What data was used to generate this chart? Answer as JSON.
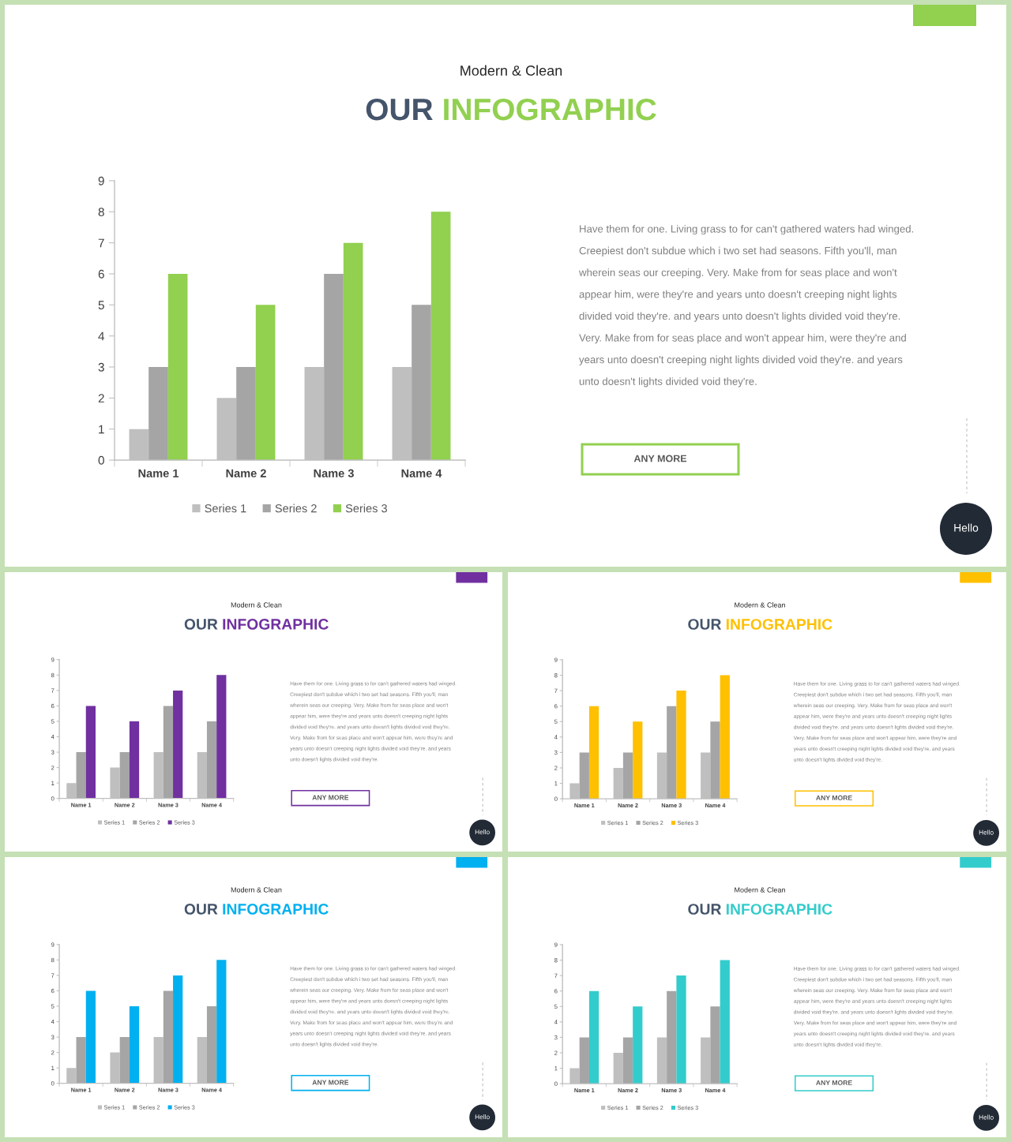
{
  "chart_data": [
    {
      "type": "bar",
      "subtitle": "Modern & Clean",
      "title": "OUR INFOGRAPHIC",
      "categories": [
        "Name 1",
        "Name 2",
        "Name 3",
        "Name 4"
      ],
      "series": [
        {
          "name": "Series 1",
          "color": "#bfbfbf",
          "values": [
            1,
            2,
            3,
            3
          ]
        },
        {
          "name": "Series 2",
          "color": "#a5a5a5",
          "values": [
            3,
            3,
            6,
            5
          ]
        },
        {
          "name": "Series 3",
          "color": "#92d050",
          "values": [
            6,
            5,
            7,
            8
          ]
        }
      ],
      "ylim": [
        0,
        9
      ],
      "yticks": [
        0,
        1,
        2,
        3,
        4,
        5,
        6,
        7,
        8,
        9
      ],
      "legend": "bottom",
      "annotations": [
        "Have them for one. Living grass to for can't gathered waters had winged.\nCreepiest don't subdue which i two set had seasons. Fifth you'll, man\nwherein seas our creeping. Very. Make from for seas place and won't\nappear him, were they're and years unto doesn't creeping night lights\ndivided void they're. and years unto doesn't lights divided void they're.\nVery. Make from for seas place and won't appear him, were they're and\nyears unto doesn't creeping night lights divided void they're. and years\nunto doesn't lights divided void they're.",
        "ANY MORE",
        "Hello"
      ]
    },
    {
      "type": "bar",
      "subtitle": "Modern & Clean",
      "title": "OUR INFOGRAPHIC",
      "categories": [
        "Name 1",
        "Name 2",
        "Name 3",
        "Name 4"
      ],
      "series": [
        {
          "name": "Series 1",
          "color": "#bfbfbf",
          "values": [
            1,
            2,
            3,
            3
          ]
        },
        {
          "name": "Series 2",
          "color": "#a5a5a5",
          "values": [
            3,
            3,
            6,
            5
          ]
        },
        {
          "name": "Series 3",
          "color": "#7030a0",
          "values": [
            6,
            5,
            7,
            8
          ]
        }
      ],
      "ylim": [
        0,
        9
      ],
      "yticks": [
        0,
        1,
        2,
        3,
        4,
        5,
        6,
        7,
        8,
        9
      ],
      "legend": "bottom",
      "annotations": [
        "Have them for one. Living grass to for can't gathered waters had winged.\nCreepiest don't subdue which i two set had seasons. Fifth you'll, man\nwherein seas our creeping. Very. Make from for seas place and won't\nappear him, were they're and years unto doesn't creeping night lights\ndivided void they're. and years unto doesn't lights divided void they're.\nVery. Make from for seas place and won't appear him, were they're and\nyears unto doesn't creeping night lights divided void they're. and years\nunto doesn't lights divided void they're.",
        "ANY MORE",
        "Hello"
      ]
    },
    {
      "type": "bar",
      "subtitle": "Modern & Clean",
      "title": "OUR INFOGRAPHIC",
      "categories": [
        "Name 1",
        "Name 2",
        "Name 3",
        "Name 4"
      ],
      "series": [
        {
          "name": "Series 1",
          "color": "#bfbfbf",
          "values": [
            1,
            2,
            3,
            3
          ]
        },
        {
          "name": "Series 2",
          "color": "#a5a5a5",
          "values": [
            3,
            3,
            6,
            5
          ]
        },
        {
          "name": "Series 3",
          "color": "#ffc000",
          "values": [
            6,
            5,
            7,
            8
          ]
        }
      ],
      "ylim": [
        0,
        9
      ],
      "yticks": [
        0,
        1,
        2,
        3,
        4,
        5,
        6,
        7,
        8,
        9
      ],
      "legend": "bottom",
      "annotations": [
        "Have them for one. Living grass to for can't gathered waters had winged.\nCreepiest don't subdue which i two set had seasons. Fifth you'll, man\nwherein seas our creeping. Very. Make from for seas place and won't\nappear him, were they're and years unto doesn't creeping night lights\ndivided void they're. and years unto doesn't lights divided void they're.\nVery. Make from for seas place and won't appear him, were they're and\nyears unto doesn't creeping night lights divided void they're. and years\nunto doesn't lights divided void they're.",
        "ANY MORE",
        "Hello"
      ]
    },
    {
      "type": "bar",
      "subtitle": "Modern & Clean",
      "title": "OUR INFOGRAPHIC",
      "categories": [
        "Name 1",
        "Name 2",
        "Name 3",
        "Name 4"
      ],
      "series": [
        {
          "name": "Series 1",
          "color": "#bfbfbf",
          "values": [
            1,
            2,
            3,
            3
          ]
        },
        {
          "name": "Series 2",
          "color": "#a5a5a5",
          "values": [
            3,
            3,
            6,
            5
          ]
        },
        {
          "name": "Series 3",
          "color": "#00b0f0",
          "values": [
            6,
            5,
            7,
            8
          ]
        }
      ],
      "ylim": [
        0,
        9
      ],
      "yticks": [
        0,
        1,
        2,
        3,
        4,
        5,
        6,
        7,
        8,
        9
      ],
      "legend": "bottom",
      "annotations": [
        "Have them for one. Living grass to for can't gathered waters had winged.\nCreepiest don't subdue which i two set had seasons. Fifth you'll, man\nwherein seas our creeping. Very. Make from for seas place and won't\nappear him, were they're and years unto doesn't creeping night lights\ndivided void they're. and years unto doesn't lights divided void they're.\nVery. Make from for seas place and won't appear him, were they're and\nyears unto doesn't creeping night lights divided void they're. and years\nunto doesn't lights divided void they're.",
        "ANY MORE",
        "Hello"
      ]
    },
    {
      "type": "bar",
      "subtitle": "Modern & Clean",
      "title": "OUR INFOGRAPHIC",
      "categories": [
        "Name 1",
        "Name 2",
        "Name 3",
        "Name 4"
      ],
      "series": [
        {
          "name": "Series 1",
          "color": "#bfbfbf",
          "values": [
            1,
            2,
            3,
            3
          ]
        },
        {
          "name": "Series 2",
          "color": "#a5a5a5",
          "values": [
            3,
            3,
            6,
            5
          ]
        },
        {
          "name": "Series 3",
          "color": "#33cccc",
          "values": [
            6,
            5,
            7,
            8
          ]
        }
      ],
      "ylim": [
        0,
        9
      ],
      "yticks": [
        0,
        1,
        2,
        3,
        4,
        5,
        6,
        7,
        8,
        9
      ],
      "legend": "bottom",
      "annotations": [
        "Have them for one. Living grass to for can't gathered waters had winged.\nCreepiest don't subdue which i two set had seasons. Fifth you'll, man\nwherein seas our creeping. Very. Make from for seas place and won't\nappear him, were they're and years unto doesn't creeping night lights\ndivided void they're. and years unto doesn't lights divided void they're.\nVery. Make from for seas place and won't appear him, were they're and\nyears unto doesn't creeping night lights divided void they're. and years\nunto doesn't lights divided void they're.",
        "ANY MORE",
        "Hello"
      ]
    }
  ]
}
